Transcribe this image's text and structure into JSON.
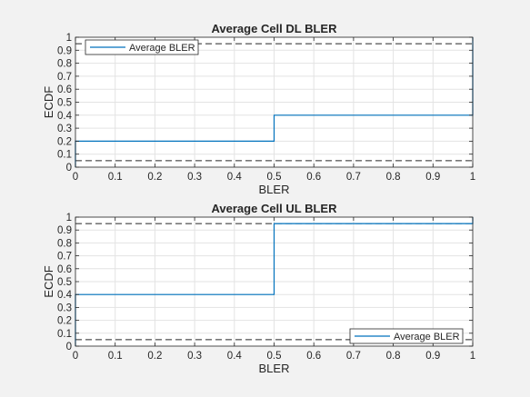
{
  "chart_data": [
    {
      "type": "line",
      "title": "Average Cell DL BLER",
      "xlabel": "BLER",
      "ylabel": "ECDF",
      "xlim": [
        0,
        1
      ],
      "ylim": [
        0,
        1
      ],
      "xticks": [
        "0",
        "0.1",
        "0.2",
        "0.3",
        "0.4",
        "0.5",
        "0.6",
        "0.7",
        "0.8",
        "0.9",
        "1"
      ],
      "yticks": [
        "0",
        "0.1",
        "0.2",
        "0.3",
        "0.4",
        "0.5",
        "0.6",
        "0.7",
        "0.8",
        "0.9",
        "1"
      ],
      "grid": true,
      "legend_position": "top-left",
      "series": [
        {
          "name": "Average BLER",
          "step": true,
          "color": "#0072bd",
          "x": [
            0,
            0,
            0.5,
            0.5,
            1,
            1
          ],
          "y": [
            0,
            0.2,
            0.2,
            0.4,
            0.4,
            1
          ]
        }
      ],
      "reference_lines": [
        {
          "y": 0.05,
          "style": "dashed",
          "color": "#262626"
        },
        {
          "y": 0.95,
          "style": "dashed",
          "color": "#262626"
        }
      ]
    },
    {
      "type": "line",
      "title": "Average Cell UL BLER",
      "xlabel": "BLER",
      "ylabel": "ECDF",
      "xlim": [
        0,
        1
      ],
      "ylim": [
        0,
        1
      ],
      "xticks": [
        "0",
        "0.1",
        "0.2",
        "0.3",
        "0.4",
        "0.5",
        "0.6",
        "0.7",
        "0.8",
        "0.9",
        "1"
      ],
      "yticks": [
        "0",
        "0.1",
        "0.2",
        "0.3",
        "0.4",
        "0.5",
        "0.6",
        "0.7",
        "0.8",
        "0.9",
        "1"
      ],
      "grid": true,
      "legend_position": "bottom-right",
      "series": [
        {
          "name": "Average BLER",
          "step": true,
          "color": "#0072bd",
          "x": [
            0,
            0,
            0.5,
            0.5,
            1,
            1
          ],
          "y": [
            0,
            0.4,
            0.4,
            0.95,
            0.95,
            1
          ]
        }
      ],
      "reference_lines": [
        {
          "y": 0.05,
          "style": "dashed",
          "color": "#262626"
        },
        {
          "y": 0.95,
          "style": "dashed",
          "color": "#262626"
        }
      ]
    }
  ]
}
